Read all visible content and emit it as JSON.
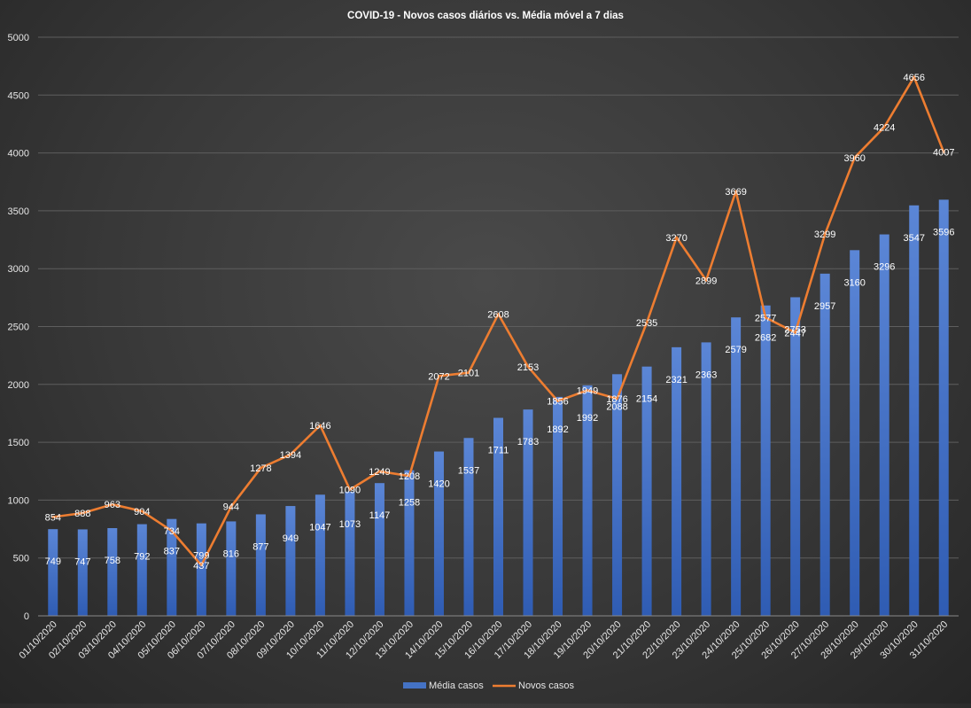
{
  "chart_data": {
    "type": "bar",
    "title": "COVID-19  - Novos casos diários  vs. Média  móvel  a 7 dias",
    "xlabel": "",
    "ylabel": "",
    "ylim": [
      0,
      5000
    ],
    "yticks": [
      0,
      500,
      1000,
      1500,
      2000,
      2500,
      3000,
      3500,
      4000,
      4500,
      5000
    ],
    "grid": true,
    "legend_position": "bottom",
    "categories": [
      "01/10/2020",
      "02/10/2020",
      "03/10/2020",
      "04/10/2020",
      "05/10/2020",
      "06/10/2020",
      "07/10/2020",
      "08/10/2020",
      "09/10/2020",
      "10/10/2020",
      "11/10/2020",
      "12/10/2020",
      "13/10/2020",
      "14/10/2020",
      "15/10/2020",
      "16/10/2020",
      "17/10/2020",
      "18/10/2020",
      "19/10/2020",
      "20/10/2020",
      "21/10/2020",
      "22/10/2020",
      "23/10/2020",
      "24/10/2020",
      "25/10/2020",
      "26/10/2020",
      "27/10/2020",
      "28/10/2020",
      "29/10/2020",
      "30/10/2020",
      "31/10/2020"
    ],
    "series": [
      {
        "name": "Média casos",
        "type": "bar",
        "color": "#4472C4",
        "values": [
          749,
          747,
          758,
          792,
          837,
          799,
          816,
          877,
          949,
          1047,
          1073,
          1147,
          1258,
          1420,
          1537,
          1711,
          1783,
          1892,
          1992,
          2088,
          2154,
          2321,
          2363,
          2579,
          2682,
          2753,
          2957,
          3160,
          3296,
          3547,
          3596
        ]
      },
      {
        "name": "Novos casos",
        "type": "line",
        "color": "#ED7D31",
        "values": [
          854,
          888,
          963,
          904,
          734,
          437,
          944,
          1278,
          1394,
          1646,
          1090,
          1249,
          1208,
          2072,
          2101,
          2608,
          2153,
          1856,
          1949,
          1876,
          2535,
          3270,
          2899,
          3669,
          2577,
          2447,
          3299,
          3960,
          4224,
          4656,
          4007
        ]
      }
    ]
  }
}
